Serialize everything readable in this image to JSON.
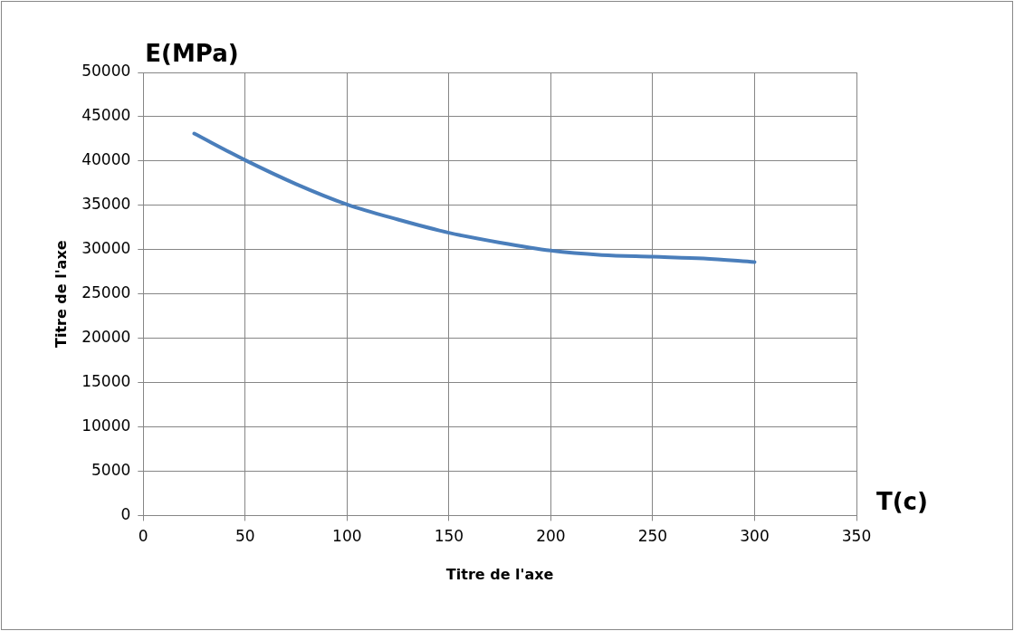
{
  "chart_data": {
    "type": "line",
    "xlabel": "Titre de l'axe",
    "ylabel": "Titre de l'axe",
    "annotations": [
      "E(MPa)",
      "T(c)"
    ],
    "series": [
      {
        "color": "#4a7ebb",
        "x": [
          25,
          50,
          75,
          100,
          125,
          150,
          175,
          200,
          225,
          250,
          275,
          300
        ],
        "values": [
          43100,
          40100,
          37400,
          35100,
          33400,
          31900,
          30800,
          29900,
          29400,
          29200,
          29000,
          28600
        ]
      }
    ],
    "xlim": [
      0,
      350
    ],
    "xticks": [
      0,
      50,
      100,
      150,
      200,
      250,
      300,
      350
    ],
    "ylim": [
      0,
      50000
    ],
    "yticks": [
      0,
      5000,
      10000,
      15000,
      20000,
      25000,
      30000,
      35000,
      40000,
      45000,
      50000
    ],
    "grid": true,
    "legend": false,
    "marker": "none",
    "line_style": "solid"
  }
}
